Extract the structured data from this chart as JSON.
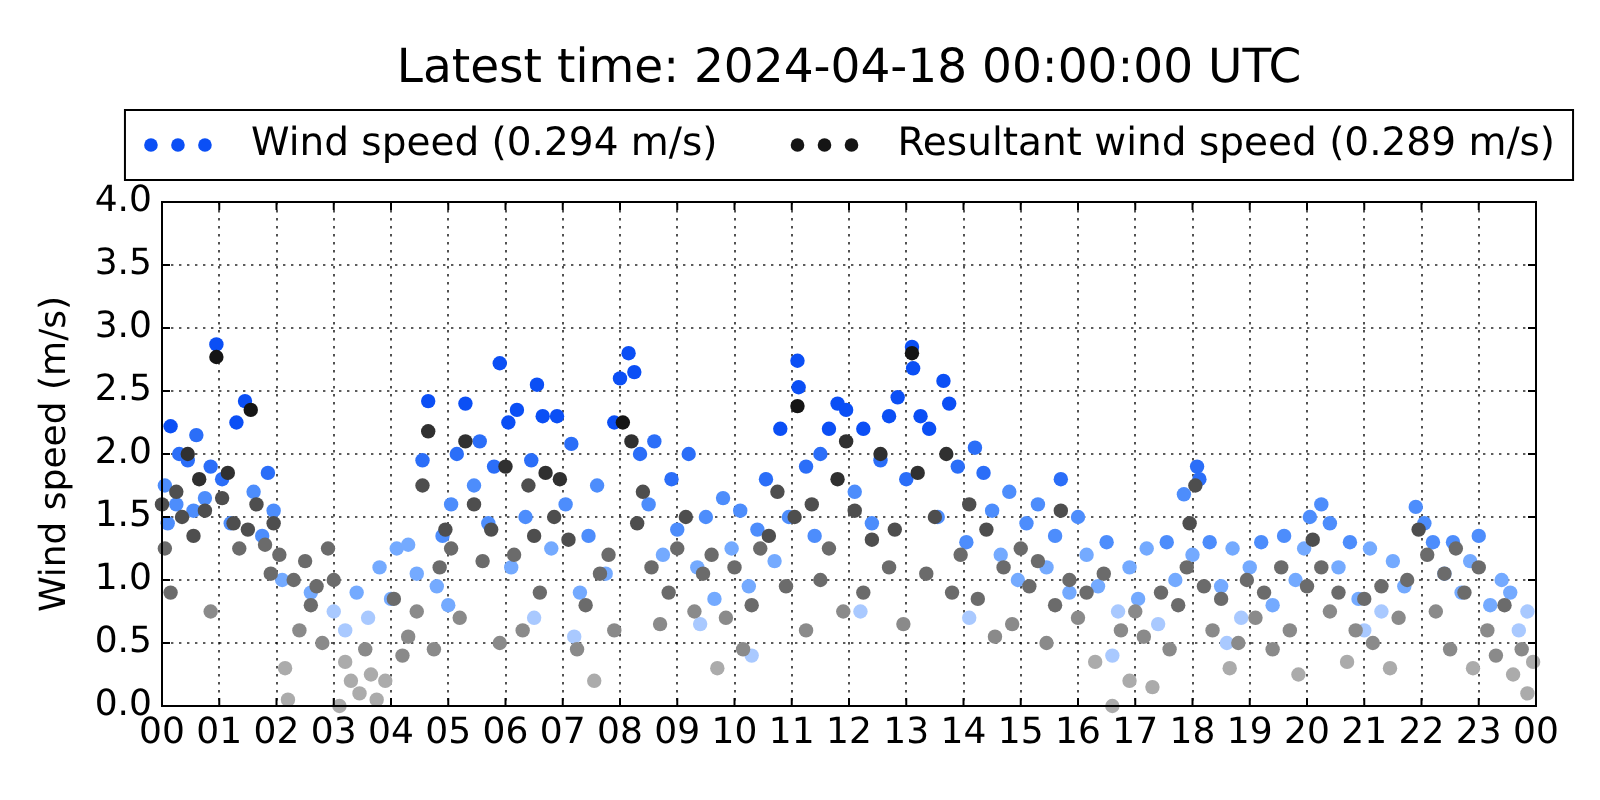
{
  "chart_data": {
    "type": "scatter",
    "title": "Latest time: 2024-04-18 00:00:00 UTC",
    "ylabel": "Wind speed (m/s)",
    "xlim": [
      0,
      24
    ],
    "xticks": [
      {
        "value": 0,
        "label": "00"
      },
      {
        "value": 1,
        "label": "01"
      },
      {
        "value": 2,
        "label": "02"
      },
      {
        "value": 3,
        "label": "03"
      },
      {
        "value": 4,
        "label": "04"
      },
      {
        "value": 5,
        "label": "05"
      },
      {
        "value": 6,
        "label": "06"
      },
      {
        "value": 7,
        "label": "07"
      },
      {
        "value": 8,
        "label": "08"
      },
      {
        "value": 9,
        "label": "09"
      },
      {
        "value": 10,
        "label": "10"
      },
      {
        "value": 11,
        "label": "11"
      },
      {
        "value": 12,
        "label": "12"
      },
      {
        "value": 13,
        "label": "13"
      },
      {
        "value": 14,
        "label": "14"
      },
      {
        "value": 15,
        "label": "15"
      },
      {
        "value": 16,
        "label": "16"
      },
      {
        "value": 17,
        "label": "17"
      },
      {
        "value": 18,
        "label": "18"
      },
      {
        "value": 19,
        "label": "19"
      },
      {
        "value": 20,
        "label": "20"
      },
      {
        "value": 21,
        "label": "21"
      },
      {
        "value": 22,
        "label": "22"
      },
      {
        "value": 23,
        "label": "23"
      },
      {
        "value": 24,
        "label": "00"
      }
    ],
    "ylim": [
      0,
      4
    ],
    "yticks": [
      {
        "value": 0,
        "label": "0.0"
      },
      {
        "value": 0.5,
        "label": "0.5"
      },
      {
        "value": 1,
        "label": "1.0"
      },
      {
        "value": 1.5,
        "label": "1.5"
      },
      {
        "value": 2,
        "label": "2.0"
      },
      {
        "value": 2.5,
        "label": "2.5"
      },
      {
        "value": 3,
        "label": "3.0"
      },
      {
        "value": 3.5,
        "label": "3.5"
      },
      {
        "value": 4,
        "label": "4.0"
      }
    ],
    "grid": true,
    "legend": "top",
    "marker": "circle",
    "series": [
      {
        "name": "Wind speed (0.294 m/s)",
        "color": "#0b4ff5",
        "x": [
          0.05,
          0.1,
          0.15,
          0.25,
          0.3,
          0.45,
          0.55,
          0.6,
          0.75,
          0.85,
          0.95,
          1.05,
          1.2,
          1.3,
          1.45,
          1.6,
          1.75,
          1.85,
          1.95,
          2.1,
          2.6,
          3.0,
          3.2,
          3.4,
          3.6,
          3.8,
          4.0,
          4.1,
          4.3,
          4.45,
          4.55,
          4.65,
          4.8,
          4.9,
          5.05,
          5.15,
          5.3,
          5.45,
          5.55,
          5.7,
          5.8,
          5.9,
          6.05,
          6.1,
          6.2,
          6.35,
          6.45,
          6.55,
          6.65,
          6.8,
          6.9,
          7.05,
          7.15,
          7.3,
          7.45,
          7.6,
          7.75,
          7.9,
          8.0,
          8.15,
          8.25,
          8.35,
          8.5,
          8.6,
          8.75,
          8.9,
          9.0,
          9.2,
          9.35,
          9.5,
          9.65,
          9.8,
          9.95,
          10.1,
          10.25,
          10.4,
          10.55,
          10.7,
          10.8,
          10.95,
          11.1,
          11.12,
          11.25,
          11.4,
          11.5,
          11.65,
          11.8,
          11.95,
          12.1,
          12.25,
          12.4,
          12.55,
          12.7,
          12.85,
          13.0,
          13.1,
          13.12,
          13.25,
          13.4,
          13.55,
          13.65,
          13.75,
          13.9,
          14.05,
          14.2,
          14.35,
          14.5,
          14.65,
          14.8,
          14.95,
          15.1,
          15.3,
          15.45,
          15.6,
          15.7,
          15.85,
          16.0,
          16.15,
          16.35,
          16.5,
          16.7,
          16.9,
          17.05,
          17.2,
          17.4,
          17.55,
          17.7,
          17.85,
          18.0,
          18.08,
          18.12,
          18.3,
          18.5,
          18.7,
          18.85,
          19.0,
          19.2,
          19.4,
          19.6,
          19.8,
          19.95,
          20.05,
          20.25,
          20.4,
          20.55,
          20.75,
          20.9,
          21.1,
          21.3,
          21.5,
          21.7,
          21.9,
          22.05,
          22.2,
          22.4,
          22.55,
          22.7,
          22.85,
          23.0,
          23.2,
          23.4,
          23.55,
          23.7,
          23.85,
          5.0,
          6.5,
          7.2,
          9.4,
          10.3,
          12.2,
          14.1,
          16.6,
          18.6,
          21.0
        ],
        "values": [
          1.75,
          1.45,
          2.22,
          1.6,
          2.0,
          1.95,
          1.55,
          2.15,
          1.65,
          1.9,
          2.87,
          1.8,
          1.45,
          2.25,
          2.42,
          1.7,
          1.35,
          1.85,
          1.55,
          1.0,
          0.9,
          0.75,
          0.6,
          0.9,
          0.7,
          1.1,
          0.85,
          1.25,
          1.28,
          1.05,
          1.95,
          2.42,
          0.95,
          1.35,
          1.6,
          2.0,
          2.4,
          1.75,
          2.1,
          1.45,
          1.9,
          2.72,
          2.25,
          1.1,
          2.35,
          1.5,
          1.95,
          2.55,
          2.3,
          1.25,
          2.3,
          1.6,
          2.08,
          0.9,
          1.35,
          1.75,
          1.05,
          2.25,
          2.6,
          2.8,
          2.65,
          2.0,
          1.6,
          2.1,
          1.2,
          1.8,
          1.4,
          2.0,
          1.1,
          1.5,
          0.85,
          1.65,
          1.25,
          1.55,
          0.95,
          1.4,
          1.8,
          1.15,
          2.2,
          1.5,
          2.74,
          2.53,
          1.9,
          1.35,
          2.0,
          2.2,
          2.4,
          2.35,
          1.7,
          2.2,
          1.45,
          1.95,
          2.3,
          2.45,
          1.8,
          2.85,
          2.68,
          2.3,
          2.2,
          1.5,
          2.58,
          2.4,
          1.9,
          1.3,
          2.05,
          1.85,
          1.55,
          1.2,
          1.7,
          1.0,
          1.45,
          1.6,
          1.1,
          1.35,
          1.8,
          0.9,
          1.5,
          1.2,
          0.95,
          1.3,
          0.75,
          1.1,
          0.85,
          1.25,
          0.65,
          1.3,
          1.0,
          1.68,
          1.2,
          1.9,
          1.8,
          1.3,
          0.95,
          1.25,
          0.7,
          1.1,
          1.3,
          0.8,
          1.35,
          1.0,
          1.25,
          1.5,
          1.6,
          1.45,
          1.1,
          1.3,
          0.85,
          1.25,
          0.75,
          1.15,
          0.95,
          1.58,
          1.45,
          1.3,
          1.05,
          1.3,
          0.9,
          1.15,
          1.35,
          0.8,
          1.0,
          0.9,
          0.6,
          0.75,
          0.8,
          0.7,
          0.55,
          0.65,
          0.4,
          0.75,
          0.7,
          0.4,
          0.5,
          0.6
        ],
        "colors": [
          "#4d8dfc",
          "#4d8dfc",
          "#0b4ff5",
          "#4d8dfc",
          "#2b6ef8",
          "#2b6ef8",
          "#4d8dfc",
          "#2b6ef8",
          "#4d8dfc",
          "#2b6ef8",
          "#0b4ff5",
          "#2b6ef8",
          "#4d8dfc",
          "#0b4ff5",
          "#0b4ff5",
          "#4d8dfc",
          "#4d8dfc",
          "#2b6ef8",
          "#4d8dfc",
          "#74aaff",
          "#74aaff",
          "#a9c9ff",
          "#a9c9ff",
          "#74aaff",
          "#a9c9ff",
          "#74aaff",
          "#74aaff",
          "#74aaff",
          "#74aaff",
          "#74aaff",
          "#2b6ef8",
          "#0b4ff5",
          "#74aaff",
          "#4d8dfc",
          "#4d8dfc",
          "#2b6ef8",
          "#0b4ff5",
          "#4d8dfc",
          "#2b6ef8",
          "#4d8dfc",
          "#2b6ef8",
          "#0b4ff5",
          "#0b4ff5",
          "#74aaff",
          "#0b4ff5",
          "#4d8dfc",
          "#2b6ef8",
          "#0b4ff5",
          "#0b4ff5",
          "#74aaff",
          "#0b4ff5",
          "#4d8dfc",
          "#2b6ef8",
          "#74aaff",
          "#4d8dfc",
          "#4d8dfc",
          "#74aaff",
          "#0b4ff5",
          "#0b4ff5",
          "#0b4ff5",
          "#0b4ff5",
          "#2b6ef8",
          "#4d8dfc",
          "#2b6ef8",
          "#74aaff",
          "#2b6ef8",
          "#4d8dfc",
          "#2b6ef8",
          "#74aaff",
          "#4d8dfc",
          "#74aaff",
          "#4d8dfc",
          "#74aaff",
          "#4d8dfc",
          "#74aaff",
          "#4d8dfc",
          "#2b6ef8",
          "#74aaff",
          "#0b4ff5",
          "#4d8dfc",
          "#0b4ff5",
          "#0b4ff5",
          "#2b6ef8",
          "#4d8dfc",
          "#2b6ef8",
          "#0b4ff5",
          "#0b4ff5",
          "#0b4ff5",
          "#4d8dfc",
          "#0b4ff5",
          "#4d8dfc",
          "#2b6ef8",
          "#0b4ff5",
          "#0b4ff5",
          "#2b6ef8",
          "#0b4ff5",
          "#0b4ff5",
          "#0b4ff5",
          "#0b4ff5",
          "#4d8dfc",
          "#0b4ff5",
          "#0b4ff5",
          "#2b6ef8",
          "#4d8dfc",
          "#2b6ef8",
          "#2b6ef8",
          "#4d8dfc",
          "#74aaff",
          "#4d8dfc",
          "#74aaff",
          "#4d8dfc",
          "#4d8dfc",
          "#74aaff",
          "#4d8dfc",
          "#2b6ef8",
          "#74aaff",
          "#4d8dfc",
          "#74aaff",
          "#74aaff",
          "#4d8dfc",
          "#a9c9ff",
          "#74aaff",
          "#74aaff",
          "#74aaff",
          "#a9c9ff",
          "#4d8dfc",
          "#74aaff",
          "#4d8dfc",
          "#74aaff",
          "#2b6ef8",
          "#2b6ef8",
          "#4d8dfc",
          "#74aaff",
          "#74aaff",
          "#a9c9ff",
          "#74aaff",
          "#4d8dfc",
          "#74aaff",
          "#4d8dfc",
          "#74aaff",
          "#74aaff",
          "#4d8dfc",
          "#4d8dfc",
          "#4d8dfc",
          "#74aaff",
          "#4d8dfc",
          "#74aaff",
          "#74aaff",
          "#a9c9ff",
          "#74aaff",
          "#74aaff",
          "#4d8dfc",
          "#4d8dfc",
          "#4d8dfc",
          "#74aaff",
          "#4d8dfc",
          "#74aaff",
          "#74aaff",
          "#4d8dfc",
          "#74aaff",
          "#74aaff",
          "#74aaff",
          "#a9c9ff",
          "#a9c9ff",
          "#74aaff",
          "#a9c9ff",
          "#a9c9ff",
          "#a9c9ff",
          "#a9c9ff",
          "#a9c9ff",
          "#a9c9ff",
          "#a9c9ff",
          "#a9c9ff",
          "#a9c9ff"
        ]
      },
      {
        "name": "Resultant wind speed (0.289 m/s)",
        "color": "#151515",
        "x": [
          0.0,
          0.05,
          0.15,
          0.25,
          0.35,
          0.45,
          0.55,
          0.65,
          0.75,
          0.85,
          0.95,
          1.05,
          1.15,
          1.25,
          1.35,
          1.5,
          1.55,
          1.65,
          1.8,
          1.9,
          1.95,
          2.05,
          2.15,
          2.2,
          2.3,
          2.4,
          2.5,
          2.6,
          2.7,
          2.8,
          2.9,
          3.0,
          3.1,
          3.2,
          3.3,
          3.45,
          3.55,
          3.65,
          3.75,
          3.9,
          4.05,
          4.2,
          4.3,
          4.45,
          4.55,
          4.65,
          4.75,
          4.85,
          4.95,
          5.05,
          5.2,
          5.3,
          5.45,
          5.6,
          5.75,
          5.9,
          6.0,
          6.15,
          6.3,
          6.4,
          6.5,
          6.6,
          6.7,
          6.85,
          6.95,
          7.1,
          7.25,
          7.4,
          7.55,
          7.65,
          7.8,
          7.9,
          8.05,
          8.2,
          8.3,
          8.4,
          8.55,
          8.7,
          8.85,
          9.0,
          9.15,
          9.3,
          9.45,
          9.6,
          9.7,
          9.85,
          10.0,
          10.15,
          10.3,
          10.45,
          10.6,
          10.75,
          10.9,
          11.05,
          11.1,
          11.25,
          11.35,
          11.5,
          11.65,
          11.8,
          11.9,
          11.95,
          12.1,
          12.25,
          12.4,
          12.55,
          12.7,
          12.8,
          12.95,
          13.1,
          13.2,
          13.35,
          13.5,
          13.7,
          13.8,
          13.95,
          14.1,
          14.25,
          14.4,
          14.55,
          14.7,
          14.85,
          15.0,
          15.15,
          15.3,
          15.45,
          15.6,
          15.7,
          15.85,
          16.0,
          16.15,
          16.3,
          16.45,
          16.6,
          16.75,
          16.9,
          17.0,
          17.15,
          17.3,
          17.45,
          17.6,
          17.75,
          17.9,
          17.95,
          18.05,
          18.2,
          18.35,
          18.5,
          18.65,
          18.8,
          18.95,
          19.1,
          19.25,
          19.4,
          19.55,
          19.7,
          19.85,
          20.0,
          20.1,
          20.25,
          20.4,
          20.55,
          20.7,
          20.85,
          21.0,
          21.15,
          21.3,
          21.45,
          21.6,
          21.75,
          21.95,
          22.1,
          22.25,
          22.4,
          22.5,
          22.6,
          22.75,
          22.9,
          23.0,
          23.15,
          23.3,
          23.45,
          23.6,
          23.75,
          23.85,
          23.95
        ],
        "values": [
          1.6,
          1.25,
          0.9,
          1.7,
          1.5,
          2.0,
          1.35,
          1.8,
          1.55,
          0.75,
          2.77,
          1.65,
          1.85,
          1.45,
          1.25,
          1.4,
          2.35,
          1.6,
          1.28,
          1.05,
          1.45,
          1.2,
          0.3,
          0.05,
          1.0,
          0.6,
          1.15,
          0.8,
          0.95,
          0.5,
          1.25,
          1.0,
          0.0,
          0.35,
          0.2,
          0.1,
          0.45,
          0.25,
          0.05,
          0.2,
          0.85,
          0.4,
          0.55,
          0.75,
          1.75,
          2.18,
          0.45,
          1.1,
          1.4,
          1.25,
          0.7,
          2.1,
          1.6,
          1.15,
          1.4,
          0.5,
          1.9,
          1.2,
          0.6,
          1.75,
          1.35,
          0.9,
          1.85,
          1.5,
          1.8,
          1.32,
          0.45,
          0.8,
          0.2,
          1.05,
          1.2,
          0.6,
          2.25,
          2.1,
          1.45,
          1.7,
          1.1,
          0.65,
          0.9,
          1.25,
          1.5,
          0.75,
          1.05,
          1.2,
          0.3,
          0.7,
          1.1,
          0.45,
          0.8,
          1.25,
          1.35,
          1.7,
          0.95,
          1.5,
          2.38,
          0.6,
          1.6,
          1.0,
          1.25,
          1.8,
          0.75,
          2.1,
          1.55,
          0.9,
          1.32,
          2.0,
          1.1,
          1.4,
          0.65,
          2.8,
          1.85,
          1.05,
          1.5,
          2.0,
          0.9,
          1.2,
          1.6,
          0.85,
          1.4,
          0.55,
          1.1,
          0.65,
          1.25,
          0.95,
          1.15,
          0.5,
          0.8,
          1.55,
          1.0,
          0.7,
          0.9,
          0.35,
          1.05,
          0.0,
          0.6,
          0.2,
          0.75,
          0.55,
          0.15,
          0.9,
          0.45,
          0.8,
          1.1,
          1.45,
          1.75,
          0.95,
          0.6,
          0.85,
          0.3,
          0.5,
          1.0,
          0.7,
          0.9,
          0.45,
          1.1,
          0.6,
          0.25,
          0.95,
          1.32,
          1.1,
          0.75,
          0.9,
          0.35,
          0.6,
          0.85,
          0.5,
          0.95,
          0.3,
          0.7,
          1.0,
          1.4,
          1.2,
          0.75,
          1.05,
          0.45,
          1.25,
          0.9,
          0.3,
          1.1,
          0.6,
          0.4,
          0.8,
          0.25,
          0.45,
          0.1,
          0.35
        ],
        "colors": [
          "#4e4e4e",
          "#6b6b6b",
          "#6b6b6b",
          "#4e4e4e",
          "#4e4e4e",
          "#303030",
          "#4e4e4e",
          "#303030",
          "#4e4e4e",
          "#8a8a8a",
          "#151515",
          "#4e4e4e",
          "#303030",
          "#4e4e4e",
          "#6b6b6b",
          "#4e4e4e",
          "#151515",
          "#4e4e4e",
          "#6b6b6b",
          "#6b6b6b",
          "#4e4e4e",
          "#6b6b6b",
          "#ababab",
          "#ababab",
          "#6b6b6b",
          "#8a8a8a",
          "#6b6b6b",
          "#6b6b6b",
          "#6b6b6b",
          "#8a8a8a",
          "#6b6b6b",
          "#6b6b6b",
          "#ababab",
          "#ababab",
          "#ababab",
          "#ababab",
          "#8a8a8a",
          "#ababab",
          "#ababab",
          "#ababab",
          "#6b6b6b",
          "#8a8a8a",
          "#8a8a8a",
          "#8a8a8a",
          "#4e4e4e",
          "#303030",
          "#8a8a8a",
          "#6b6b6b",
          "#4e4e4e",
          "#6b6b6b",
          "#8a8a8a",
          "#303030",
          "#4e4e4e",
          "#6b6b6b",
          "#4e4e4e",
          "#8a8a8a",
          "#303030",
          "#6b6b6b",
          "#8a8a8a",
          "#4e4e4e",
          "#4e4e4e",
          "#6b6b6b",
          "#303030",
          "#4e4e4e",
          "#303030",
          "#4e4e4e",
          "#8a8a8a",
          "#6b6b6b",
          "#ababab",
          "#6b6b6b",
          "#6b6b6b",
          "#8a8a8a",
          "#151515",
          "#303030",
          "#4e4e4e",
          "#4e4e4e",
          "#6b6b6b",
          "#8a8a8a",
          "#6b6b6b",
          "#6b6b6b",
          "#4e4e4e",
          "#8a8a8a",
          "#6b6b6b",
          "#6b6b6b",
          "#ababab",
          "#8a8a8a",
          "#6b6b6b",
          "#8a8a8a",
          "#6b6b6b",
          "#6b6b6b",
          "#4e4e4e",
          "#4e4e4e",
          "#6b6b6b",
          "#4e4e4e",
          "#151515",
          "#8a8a8a",
          "#4e4e4e",
          "#6b6b6b",
          "#6b6b6b",
          "#303030",
          "#8a8a8a",
          "#303030",
          "#4e4e4e",
          "#6b6b6b",
          "#4e4e4e",
          "#303030",
          "#6b6b6b",
          "#4e4e4e",
          "#8a8a8a",
          "#151515",
          "#303030",
          "#6b6b6b",
          "#4e4e4e",
          "#303030",
          "#6b6b6b",
          "#6b6b6b",
          "#4e4e4e",
          "#6b6b6b",
          "#4e4e4e",
          "#8a8a8a",
          "#6b6b6b",
          "#8a8a8a",
          "#6b6b6b",
          "#6b6b6b",
          "#6b6b6b",
          "#8a8a8a",
          "#6b6b6b",
          "#4e4e4e",
          "#6b6b6b",
          "#8a8a8a",
          "#6b6b6b",
          "#ababab",
          "#6b6b6b",
          "#ababab",
          "#8a8a8a",
          "#ababab",
          "#8a8a8a",
          "#8a8a8a",
          "#ababab",
          "#6b6b6b",
          "#8a8a8a",
          "#6b6b6b",
          "#6b6b6b",
          "#4e4e4e",
          "#4e4e4e",
          "#6b6b6b",
          "#8a8a8a",
          "#6b6b6b",
          "#ababab",
          "#8a8a8a",
          "#6b6b6b",
          "#8a8a8a",
          "#6b6b6b",
          "#8a8a8a",
          "#6b6b6b",
          "#8a8a8a",
          "#ababab",
          "#6b6b6b",
          "#4e4e4e",
          "#6b6b6b",
          "#8a8a8a",
          "#6b6b6b",
          "#ababab",
          "#8a8a8a",
          "#6b6b6b",
          "#8a8a8a",
          "#6b6b6b",
          "#ababab",
          "#8a8a8a",
          "#6b6b6b",
          "#4e4e4e",
          "#6b6b6b",
          "#8a8a8a",
          "#6b6b6b",
          "#8a8a8a",
          "#6b6b6b",
          "#6b6b6b",
          "#ababab",
          "#6b6b6b",
          "#8a8a8a",
          "#8a8a8a",
          "#6b6b6b",
          "#ababab",
          "#8a8a8a",
          "#ababab",
          "#ababab"
        ]
      }
    ]
  }
}
